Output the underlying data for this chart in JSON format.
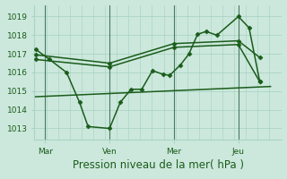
{
  "background_color": "#cce8dc",
  "grid_color": "#aad4c4",
  "line_color": "#1a5c1a",
  "title": "Pression niveau de la mer( hPa )",
  "xtick_labels": [
    "Mar",
    "Ven",
    "Mer",
    "Jeu"
  ],
  "xtick_positions": [
    0.5,
    3.5,
    6.5,
    9.5
  ],
  "ylim": [
    1012.4,
    1019.6
  ],
  "yticks": [
    1013,
    1014,
    1015,
    1016,
    1017,
    1018,
    1019
  ],
  "xlim": [
    0,
    11.5
  ],
  "series": [
    {
      "x": [
        0.05,
        0.7,
        1.5,
        2.1,
        2.5,
        3.5,
        4.0,
        4.5,
        5.0,
        5.5,
        6.0,
        6.3,
        6.8,
        7.2,
        7.6,
        8.0,
        8.5,
        9.5,
        10.0,
        10.5
      ],
      "y": [
        1017.25,
        1016.7,
        1016.0,
        1014.4,
        1013.1,
        1013.0,
        1014.4,
        1015.1,
        1015.1,
        1016.1,
        1015.9,
        1015.85,
        1016.4,
        1017.0,
        1018.05,
        1018.2,
        1018.0,
        1019.0,
        1018.4,
        1015.5
      ],
      "marker": "D",
      "markersize": 2.5,
      "linewidth": 1.1
    },
    {
      "x": [
        0.05,
        3.5,
        6.5,
        9.5,
        10.5
      ],
      "y": [
        1016.95,
        1016.5,
        1017.55,
        1017.7,
        1016.8
      ],
      "marker": "D",
      "markersize": 2.5,
      "linewidth": 1.1
    },
    {
      "x": [
        0.05,
        3.5,
        6.5,
        9.5,
        10.5
      ],
      "y": [
        1016.7,
        1016.3,
        1017.35,
        1017.5,
        1015.5
      ],
      "marker": "D",
      "markersize": 2.5,
      "linewidth": 1.1
    },
    {
      "x": [
        0.05,
        11.0
      ],
      "y": [
        1014.7,
        1015.25
      ],
      "marker": null,
      "markersize": 0,
      "linewidth": 1.1
    }
  ],
  "vlines": [
    0.5,
    3.5,
    6.5,
    9.5
  ],
  "xlabel_fontsize": 8.5,
  "tick_fontsize": 6.5,
  "ylabel_fontsize": 6.5
}
